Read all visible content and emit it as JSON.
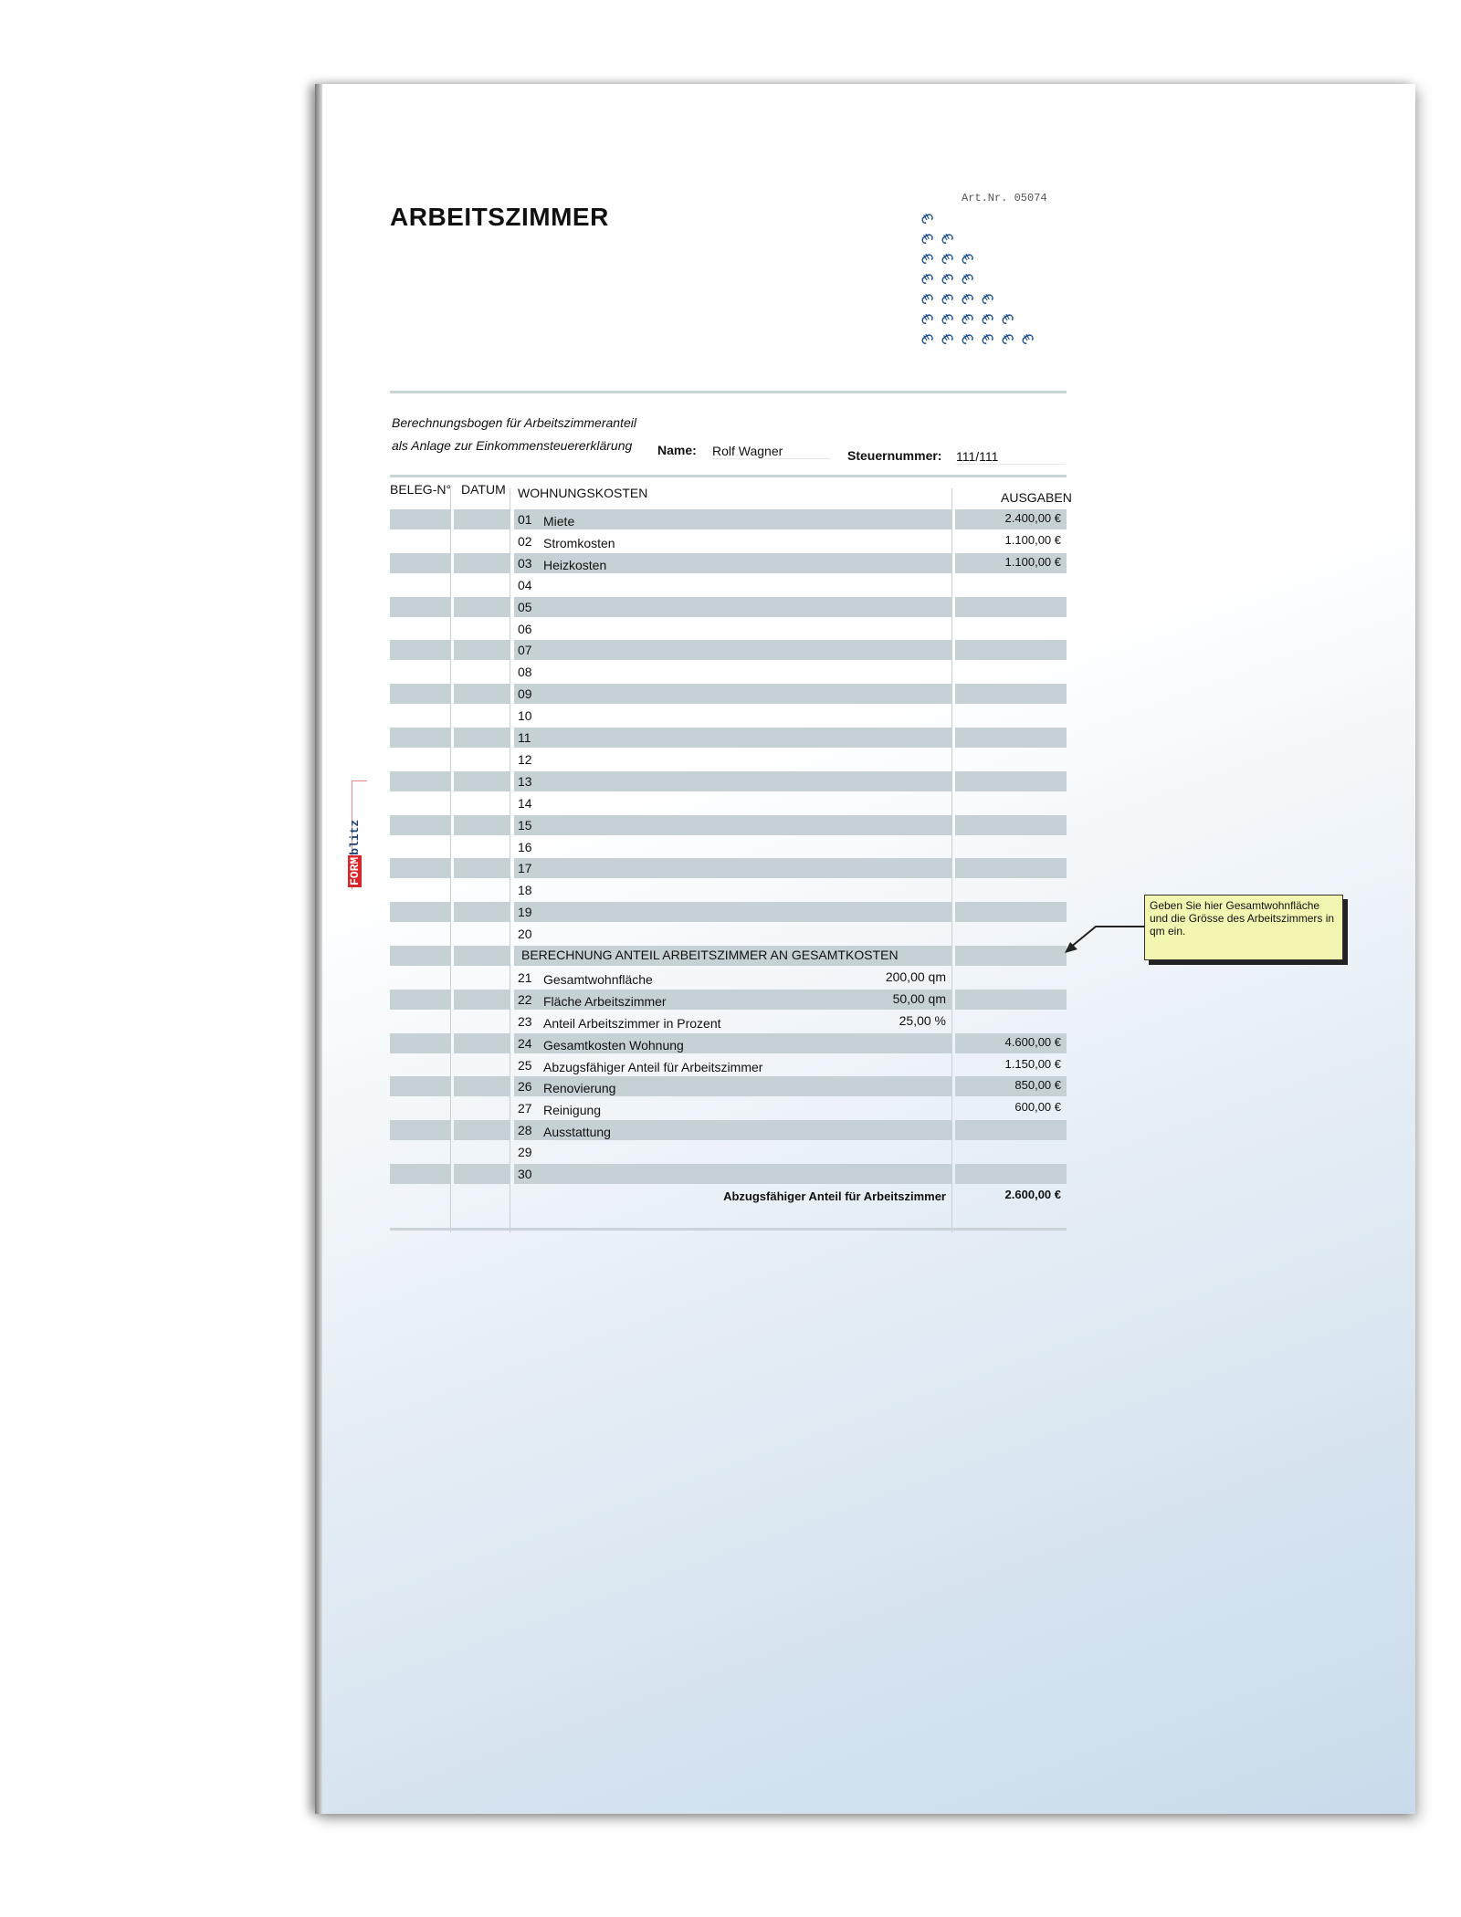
{
  "document": {
    "title": "ARBEITSZIMMER",
    "art_nr": "Art.Nr. 05074",
    "subtitle_line1": "Berechnungsbogen für Arbeitszimmeranteil",
    "subtitle_line2": "als Anlage zur Einkommensteuererklärung",
    "name_label": "Name:",
    "name_value": "Rolf Wagner",
    "tax_label": "Steuernummer:",
    "tax_value": "111/111",
    "logo": {
      "form": "FORM",
      "blitz": "blitz"
    },
    "accent_color": "#c6d1d6"
  },
  "table": {
    "headers": {
      "beleg": "BELEG-N°",
      "datum": "DATUM",
      "kosten": "WOHNUNGSKOSTEN",
      "ausgaben": "AUSGABEN"
    },
    "rows": [
      {
        "num": "01",
        "label": "Miete",
        "amount": "2.400,00 €"
      },
      {
        "num": "02",
        "label": "Stromkosten",
        "amount": "1.100,00 €"
      },
      {
        "num": "03",
        "label": "Heizkosten",
        "amount": "1.100,00 €"
      },
      {
        "num": "04"
      },
      {
        "num": "05"
      },
      {
        "num": "06"
      },
      {
        "num": "07"
      },
      {
        "num": "08"
      },
      {
        "num": "09"
      },
      {
        "num": "10"
      },
      {
        "num": "11"
      },
      {
        "num": "12"
      },
      {
        "num": "13"
      },
      {
        "num": "14"
      },
      {
        "num": "15"
      },
      {
        "num": "16"
      },
      {
        "num": "17"
      },
      {
        "num": "18"
      },
      {
        "num": "19"
      },
      {
        "num": "20"
      }
    ],
    "section_title": "BERECHNUNG ANTEIL ARBEITSZIMMER AN GESAMTKOSTEN",
    "section_rows": [
      {
        "num": "21",
        "label": "Gesamtwohnfläche",
        "mid": "200,00 qm"
      },
      {
        "num": "22",
        "label": "Fläche Arbeitszimmer",
        "mid": "50,00 qm"
      },
      {
        "num": "23",
        "label": "Anteil Arbeitszimmer in Prozent",
        "mid": "25,00 %"
      },
      {
        "num": "24",
        "label": "Gesamtkosten Wohnung",
        "amount": "4.600,00 €"
      },
      {
        "num": "25",
        "label": "Abzugsfähiger Anteil für Arbeitszimmer",
        "amount": "1.150,00 €"
      },
      {
        "num": "26",
        "label": "Renovierung",
        "amount": "850,00 €"
      },
      {
        "num": "27",
        "label": "Reinigung",
        "amount": "600,00 €"
      },
      {
        "num": "28",
        "label": "Ausstattung"
      },
      {
        "num": "29"
      },
      {
        "num": "30"
      }
    ],
    "total_label": "Abzugsfähiger Anteil für Arbeitszimmer",
    "total_amount": "2.600,00 €"
  },
  "callout": {
    "text": "Geben Sie hier Gesamtwohnfläche und die Grösse des Arbeitszimmers in qm ein."
  }
}
